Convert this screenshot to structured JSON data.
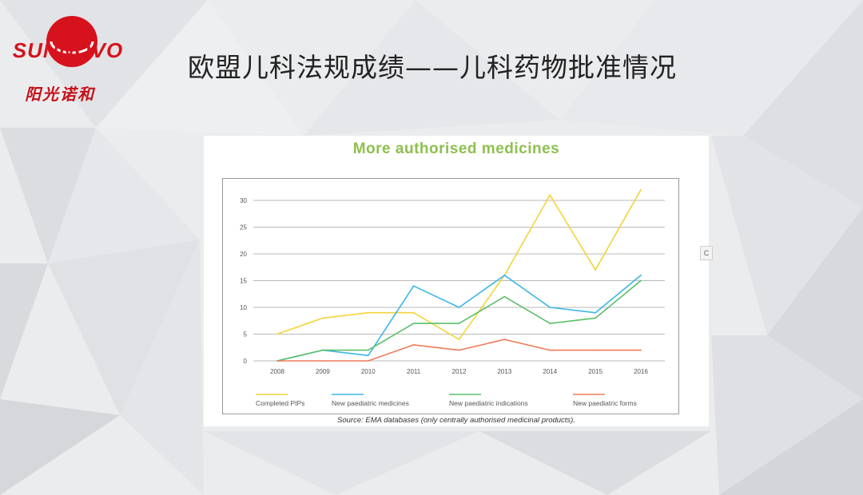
{
  "logo": {
    "brand_en": "SUNNOVO",
    "brand_cn": "阳光诺和",
    "color": "#d6121c"
  },
  "slide": {
    "title": "欧盟儿科法规成绩——儿科药物批准情况"
  },
  "side_tab": {
    "label": "C"
  },
  "chart_data": {
    "type": "line",
    "title": "More authorised medicines",
    "title_color": "#8dc04e",
    "source_note": "Source: EMA databases (only centrally authorised medicinal products).",
    "x": [
      "2008",
      "2009",
      "2010",
      "2011",
      "2012",
      "2013",
      "2014",
      "2015",
      "2016"
    ],
    "ylim": [
      0,
      30
    ],
    "yticks": [
      0,
      5,
      10,
      15,
      20,
      25,
      30
    ],
    "grid": true,
    "legend_position": "bottom",
    "series": [
      {
        "name": "Completed PIPs",
        "color": "#f2d43a",
        "values": [
          5,
          8,
          9,
          9,
          4,
          16,
          31,
          17,
          32
        ]
      },
      {
        "name": "New paediatric medicines",
        "color": "#3cb6e6",
        "values": [
          0,
          2,
          1,
          14,
          10,
          16,
          10,
          9,
          16
        ]
      },
      {
        "name": "New paediatric indications",
        "color": "#5cbf6a",
        "values": [
          0,
          2,
          2,
          7,
          7,
          12,
          7,
          8,
          15
        ]
      },
      {
        "name": "New paediatric forms",
        "color": "#ef7a5a",
        "values": [
          0,
          0,
          0,
          3,
          2,
          4,
          2,
          2,
          2
        ]
      }
    ]
  }
}
